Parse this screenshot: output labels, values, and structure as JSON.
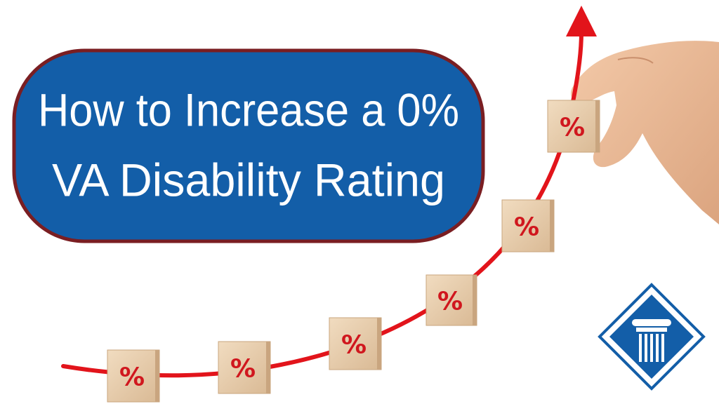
{
  "title": {
    "lines": [
      "How to Increase a 0%",
      "VA Disability Rating"
    ]
  },
  "blocks": [
    "%",
    "%",
    "%",
    "%",
    "%",
    "%"
  ]
}
